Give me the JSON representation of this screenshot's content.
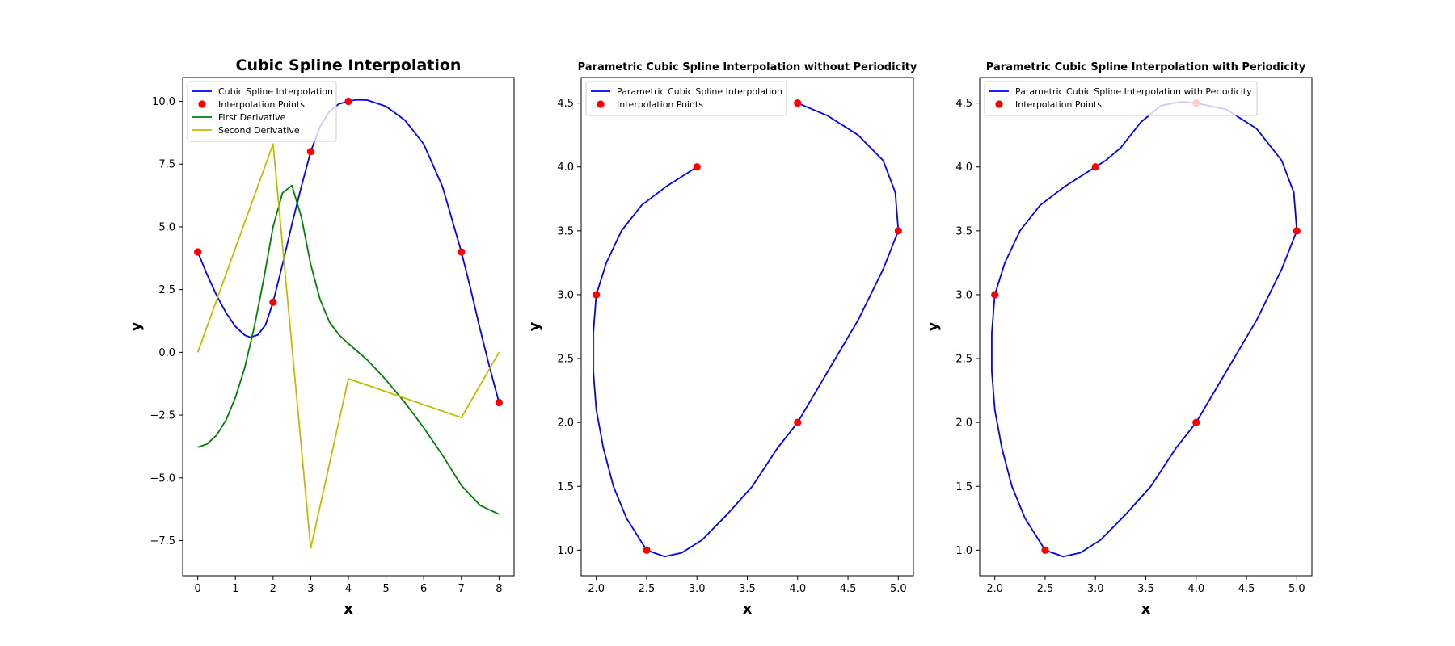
{
  "colors": {
    "spline": "#0000ff",
    "points": "#ff0000",
    "first_derivative": "#008000",
    "second_derivative": "#bfbf00",
    "frame": "#000000"
  },
  "chart_data": [
    {
      "type": "line",
      "title": "Cubic Spline Interpolation",
      "xlabel": "x",
      "ylabel": "y",
      "xlim": [
        -0.4,
        8.4
      ],
      "ylim": [
        -8.9,
        10.95
      ],
      "xticks": [
        0,
        1,
        2,
        3,
        4,
        5,
        6,
        7,
        8
      ],
      "xtick_labels": [
        "0",
        "1",
        "2",
        "3",
        "4",
        "5",
        "6",
        "7",
        "8"
      ],
      "yticks": [
        -7.5,
        -5.0,
        -2.5,
        0.0,
        2.5,
        5.0,
        7.5,
        10.0
      ],
      "ytick_labels": [
        "−7.5",
        "−5.0",
        "−2.5",
        "0.0",
        "2.5",
        "5.0",
        "7.5",
        "10.0"
      ],
      "grid": false,
      "legend": "upper-left",
      "series": [
        {
          "name": "Cubic Spline Interpolation",
          "kind": "line",
          "color": "#0000ff",
          "points": [
            [
              0,
              4.0
            ],
            [
              0.25,
              3.09
            ],
            [
              0.5,
              2.27
            ],
            [
              0.75,
              1.58
            ],
            [
              1.0,
              1.03
            ],
            [
              1.25,
              0.68
            ],
            [
              1.4,
              0.6
            ],
            [
              1.6,
              0.7
            ],
            [
              1.8,
              1.1
            ],
            [
              2.0,
              2.0
            ],
            [
              2.25,
              3.5
            ],
            [
              2.5,
              5.1
            ],
            [
              2.75,
              6.6
            ],
            [
              3.0,
              8.0
            ],
            [
              3.25,
              9.0
            ],
            [
              3.5,
              9.6
            ],
            [
              3.75,
              9.9
            ],
            [
              4.0,
              10.0
            ],
            [
              4.2,
              10.06
            ],
            [
              4.5,
              10.05
            ],
            [
              5.0,
              9.8
            ],
            [
              5.5,
              9.25
            ],
            [
              6.0,
              8.3
            ],
            [
              6.5,
              6.6
            ],
            [
              7.0,
              4.0
            ],
            [
              7.25,
              2.5
            ],
            [
              7.5,
              0.9
            ],
            [
              7.75,
              -0.6
            ],
            [
              8.0,
              -2.0
            ]
          ]
        },
        {
          "name": "Interpolation Points",
          "kind": "scatter",
          "color": "#ff0000",
          "points": [
            [
              0,
              4
            ],
            [
              2,
              2
            ],
            [
              3,
              8
            ],
            [
              4,
              10
            ],
            [
              7,
              4
            ],
            [
              8,
              -2
            ]
          ]
        },
        {
          "name": "First Derivative",
          "kind": "line",
          "color": "#008000",
          "points": [
            [
              0,
              -3.78
            ],
            [
              0.25,
              -3.65
            ],
            [
              0.5,
              -3.3
            ],
            [
              0.75,
              -2.7
            ],
            [
              1.0,
              -1.8
            ],
            [
              1.25,
              -0.6
            ],
            [
              1.5,
              1.0
            ],
            [
              1.75,
              2.9
            ],
            [
              2.0,
              5.0
            ],
            [
              2.25,
              6.35
            ],
            [
              2.5,
              6.65
            ],
            [
              2.75,
              5.4
            ],
            [
              3.0,
              3.5
            ],
            [
              3.25,
              2.1
            ],
            [
              3.5,
              1.2
            ],
            [
              3.75,
              0.7
            ],
            [
              4.0,
              0.35
            ],
            [
              4.5,
              -0.3
            ],
            [
              5.0,
              -1.1
            ],
            [
              5.5,
              -2.0
            ],
            [
              6.0,
              -3.0
            ],
            [
              6.5,
              -4.1
            ],
            [
              7.0,
              -5.3
            ],
            [
              7.5,
              -6.1
            ],
            [
              8.0,
              -6.45
            ]
          ]
        },
        {
          "name": "Second Derivative",
          "kind": "line",
          "color": "#bfbf00",
          "points": [
            [
              0,
              0
            ],
            [
              2,
              8.3
            ],
            [
              3,
              -7.8
            ],
            [
              4,
              -1.05
            ],
            [
              7,
              -2.6
            ],
            [
              8,
              0
            ]
          ]
        }
      ]
    },
    {
      "type": "line",
      "title": "Parametric Cubic Spline Interpolation without Periodicity",
      "xlabel": "x",
      "ylabel": "y",
      "xlim": [
        1.85,
        5.15
      ],
      "ylim": [
        0.8,
        4.7
      ],
      "xticks": [
        2.0,
        2.5,
        3.0,
        3.5,
        4.0,
        4.5,
        5.0
      ],
      "xtick_labels": [
        "2.0",
        "2.5",
        "3.0",
        "3.5",
        "4.0",
        "4.5",
        "5.0"
      ],
      "yticks": [
        1.0,
        1.5,
        2.0,
        2.5,
        3.0,
        3.5,
        4.0,
        4.5
      ],
      "ytick_labels": [
        "1.0",
        "1.5",
        "2.0",
        "2.5",
        "3.0",
        "3.5",
        "4.0",
        "4.5"
      ],
      "grid": false,
      "legend": "upper-left",
      "series": [
        {
          "name": "Parametric Cubic Spline Interpolation",
          "kind": "line",
          "color": "#0000ff",
          "points": [
            [
              3.0,
              4.0
            ],
            [
              2.7,
              3.85
            ],
            [
              2.45,
              3.7
            ],
            [
              2.25,
              3.5
            ],
            [
              2.1,
              3.25
            ],
            [
              2.0,
              3.0
            ],
            [
              1.97,
              2.7
            ],
            [
              1.97,
              2.4
            ],
            [
              2.0,
              2.1
            ],
            [
              2.07,
              1.8
            ],
            [
              2.17,
              1.5
            ],
            [
              2.3,
              1.25
            ],
            [
              2.5,
              1.0
            ],
            [
              2.68,
              0.95
            ],
            [
              2.85,
              0.98
            ],
            [
              3.05,
              1.08
            ],
            [
              3.3,
              1.28
            ],
            [
              3.55,
              1.5
            ],
            [
              3.8,
              1.8
            ],
            [
              4.0,
              2.0
            ],
            [
              4.3,
              2.4
            ],
            [
              4.6,
              2.8
            ],
            [
              4.85,
              3.2
            ],
            [
              5.0,
              3.5
            ],
            [
              4.97,
              3.8
            ],
            [
              4.85,
              4.05
            ],
            [
              4.6,
              4.25
            ],
            [
              4.3,
              4.4
            ],
            [
              4.0,
              4.5
            ]
          ]
        },
        {
          "name": "Interpolation Points",
          "kind": "scatter",
          "color": "#ff0000",
          "points": [
            [
              3,
              4
            ],
            [
              2,
              3
            ],
            [
              2.5,
              1
            ],
            [
              4,
              2
            ],
            [
              5,
              3.5
            ],
            [
              4,
              4.5
            ]
          ]
        }
      ]
    },
    {
      "type": "line",
      "title": "Parametric Cubic Spline Interpolation with Periodicity",
      "xlabel": "x",
      "ylabel": "y",
      "xlim": [
        1.85,
        5.15
      ],
      "ylim": [
        0.8,
        4.7
      ],
      "xticks": [
        2.0,
        2.5,
        3.0,
        3.5,
        4.0,
        4.5,
        5.0
      ],
      "xtick_labels": [
        "2.0",
        "2.5",
        "3.0",
        "3.5",
        "4.0",
        "4.5",
        "5.0"
      ],
      "yticks": [
        1.0,
        1.5,
        2.0,
        2.5,
        3.0,
        3.5,
        4.0,
        4.5
      ],
      "ytick_labels": [
        "1.0",
        "1.5",
        "2.0",
        "2.5",
        "3.0",
        "3.5",
        "4.0",
        "4.5"
      ],
      "grid": false,
      "legend": "upper-left",
      "series": [
        {
          "name": "Parametric Cubic Spline Interpolation with Periodicity",
          "kind": "line",
          "color": "#0000ff",
          "points": [
            [
              3.0,
              4.0
            ],
            [
              2.7,
              3.85
            ],
            [
              2.45,
              3.7
            ],
            [
              2.25,
              3.5
            ],
            [
              2.1,
              3.25
            ],
            [
              2.0,
              3.0
            ],
            [
              1.97,
              2.7
            ],
            [
              1.97,
              2.4
            ],
            [
              2.0,
              2.1
            ],
            [
              2.07,
              1.8
            ],
            [
              2.17,
              1.5
            ],
            [
              2.3,
              1.25
            ],
            [
              2.5,
              1.0
            ],
            [
              2.68,
              0.95
            ],
            [
              2.85,
              0.98
            ],
            [
              3.05,
              1.08
            ],
            [
              3.3,
              1.28
            ],
            [
              3.55,
              1.5
            ],
            [
              3.8,
              1.8
            ],
            [
              4.0,
              2.0
            ],
            [
              4.3,
              2.4
            ],
            [
              4.6,
              2.8
            ],
            [
              4.85,
              3.2
            ],
            [
              5.0,
              3.5
            ],
            [
              4.97,
              3.8
            ],
            [
              4.85,
              4.05
            ],
            [
              4.6,
              4.3
            ],
            [
              4.3,
              4.45
            ],
            [
              4.0,
              4.5
            ],
            [
              3.85,
              4.51
            ],
            [
              3.65,
              4.48
            ],
            [
              3.45,
              4.35
            ],
            [
              3.25,
              4.15
            ],
            [
              3.1,
              4.05
            ],
            [
              3.0,
              4.0
            ]
          ]
        },
        {
          "name": "Interpolation Points",
          "kind": "scatter",
          "color": "#ff0000",
          "points": [
            [
              3,
              4
            ],
            [
              2,
              3
            ],
            [
              2.5,
              1
            ],
            [
              4,
              2
            ],
            [
              5,
              3.5
            ],
            [
              4,
              4.5
            ]
          ]
        }
      ]
    }
  ]
}
